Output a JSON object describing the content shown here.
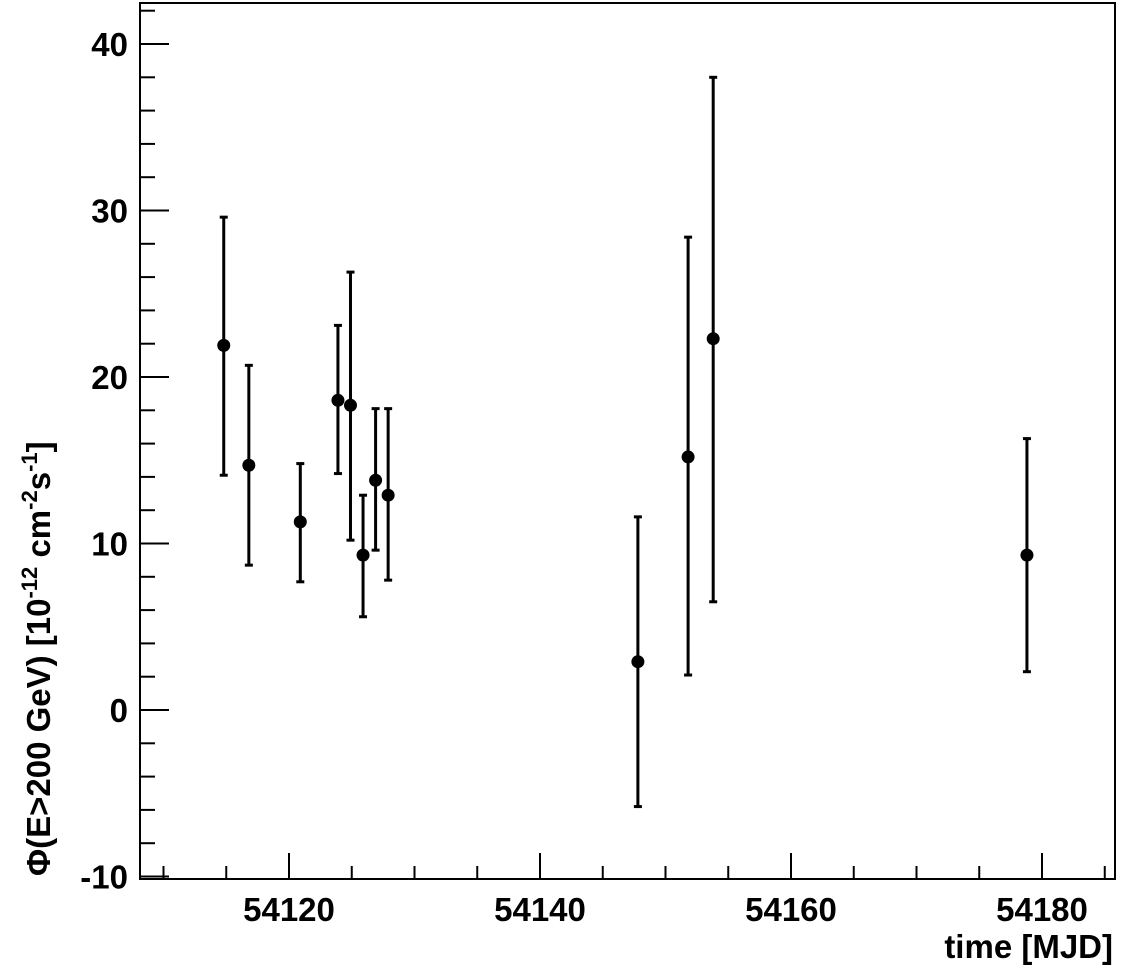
{
  "chart_data": {
    "type": "scatter",
    "xlabel": "time [MJD]",
    "ylabel": {
      "prefix": "Φ(E>200 GeV) [10",
      "exp1": "-12",
      "mid": " cm",
      "exp2": "-2",
      "mid2": "s",
      "exp3": "-1",
      "suffix": "]"
    },
    "xlim": [
      54108,
      54186
    ],
    "ylim": [
      -10,
      42.5
    ],
    "x_ticks": [
      54120,
      54140,
      54160,
      54180
    ],
    "x_tick_labels": [
      "54120",
      "54140",
      "54160",
      "54180"
    ],
    "y_ticks": [
      -10,
      0,
      10,
      20,
      30,
      40
    ],
    "y_tick_labels": [
      "-10",
      "0",
      "10",
      "20",
      "30",
      "40"
    ],
    "grid": false,
    "legend": "none",
    "marker_color": "#000000",
    "points": [
      {
        "x": 54114.8,
        "y": 21.9,
        "err_low": 14.1,
        "err_high": 29.6
      },
      {
        "x": 54116.8,
        "y": 14.7,
        "err_low": 8.7,
        "err_high": 20.7
      },
      {
        "x": 54120.9,
        "y": 11.3,
        "err_low": 7.7,
        "err_high": 14.8
      },
      {
        "x": 54123.9,
        "y": 18.6,
        "err_low": 14.2,
        "err_high": 23.1
      },
      {
        "x": 54124.9,
        "y": 18.3,
        "err_low": 10.2,
        "err_high": 26.3
      },
      {
        "x": 54125.9,
        "y": 9.3,
        "err_low": 5.6,
        "err_high": 12.9
      },
      {
        "x": 54126.9,
        "y": 13.8,
        "err_low": 9.6,
        "err_high": 18.1
      },
      {
        "x": 54127.9,
        "y": 12.9,
        "err_low": 7.8,
        "err_high": 18.1
      },
      {
        "x": 54147.8,
        "y": 2.9,
        "err_low": -5.8,
        "err_high": 11.6
      },
      {
        "x": 54151.8,
        "y": 15.2,
        "err_low": 2.1,
        "err_high": 28.4
      },
      {
        "x": 54153.8,
        "y": 22.3,
        "err_low": 6.5,
        "err_high": 38.0
      },
      {
        "x": 54178.8,
        "y": 9.3,
        "err_low": 2.3,
        "err_high": 16.3
      }
    ]
  }
}
